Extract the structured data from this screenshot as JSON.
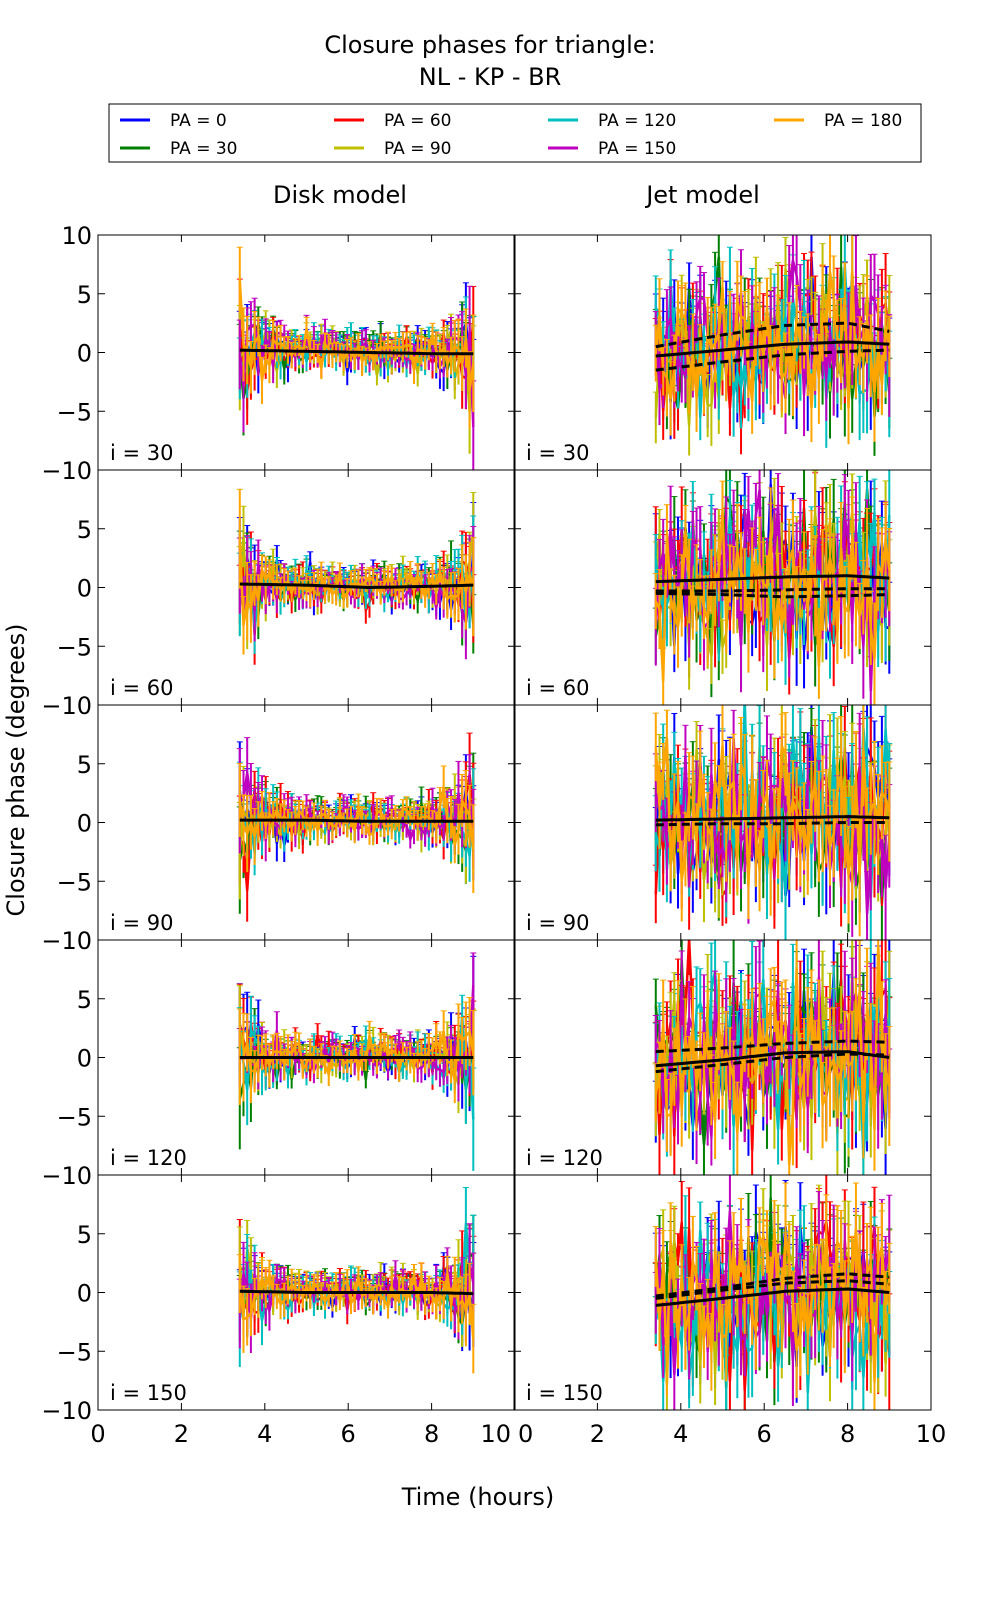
{
  "chart_data": {
    "type": "line",
    "title_line1": "Closure phases for triangle:",
    "title_line2": "NL - KP - BR",
    "xlabel": "Time (hours)",
    "ylabel": "Closure phase (degrees)",
    "xlim": [
      0,
      10
    ],
    "ylim": [
      -10,
      10
    ],
    "xticks": [
      "0",
      "2",
      "4",
      "6",
      "8",
      "10"
    ],
    "yticks": [
      "−10",
      "−5",
      "0",
      "5",
      "10"
    ],
    "grid": false,
    "legend_position": "top",
    "columns": [
      "Disk model",
      "Jet model"
    ],
    "rows": [
      "i = 30",
      "i = 60",
      "i = 90",
      "i = 120",
      "i = 150"
    ],
    "series": [
      {
        "name": "PA = 0",
        "color": "#0000ff"
      },
      {
        "name": "PA = 30",
        "color": "#008000"
      },
      {
        "name": "PA = 60",
        "color": "#ff0000"
      },
      {
        "name": "PA = 90",
        "color": "#bfbf00"
      },
      {
        "name": "PA = 120",
        "color": "#00bfbf"
      },
      {
        "name": "PA = 150",
        "color": "#bf00bf"
      },
      {
        "name": "PA = 180",
        "color": "#ffa500"
      }
    ],
    "time_range": [
      3.4,
      9.0
    ],
    "model_curve_times": [
      3.4,
      5.0,
      6.5,
      8.0,
      9.0
    ],
    "panels": [
      {
        "column": 0,
        "row": 0,
        "scatter_std": 0.8,
        "error": 1.0,
        "models": [
          [
            0.2,
            0.1,
            0.0,
            -0.1,
            -0.1
          ]
        ]
      },
      {
        "column": 1,
        "row": 0,
        "scatter_std": 2.5,
        "error": 2.5,
        "models": [
          [
            -0.3,
            0.2,
            0.7,
            0.9,
            0.7
          ],
          [
            0.5,
            1.5,
            2.3,
            2.5,
            1.8
          ],
          [
            -1.5,
            -0.8,
            -0.2,
            0.1,
            0.2
          ]
        ]
      },
      {
        "column": 0,
        "row": 1,
        "scatter_std": 0.8,
        "error": 1.0,
        "models": [
          [
            0.3,
            0.2,
            0.0,
            0.1,
            0.2
          ]
        ]
      },
      {
        "column": 1,
        "row": 1,
        "scatter_std": 3.0,
        "error": 2.8,
        "models": [
          [
            0.5,
            0.7,
            0.9,
            1.0,
            0.8
          ],
          [
            -0.3,
            -0.3,
            -0.2,
            -0.1,
            -0.1
          ],
          [
            -0.5,
            -0.6,
            -0.8,
            -0.7,
            -0.6
          ]
        ]
      },
      {
        "column": 0,
        "row": 2,
        "scatter_std": 0.8,
        "error": 1.0,
        "models": [
          [
            0.2,
            0.2,
            0.1,
            0.1,
            0.1
          ]
        ]
      },
      {
        "column": 1,
        "row": 2,
        "scatter_std": 3.2,
        "error": 3.0,
        "models": [
          [
            0.2,
            0.3,
            0.4,
            0.5,
            0.4
          ],
          [
            -0.2,
            -0.1,
            -0.1,
            0.0,
            0.0
          ]
        ]
      },
      {
        "column": 0,
        "row": 3,
        "scatter_std": 0.8,
        "error": 1.0,
        "models": [
          [
            0.0,
            0.0,
            0.0,
            0.0,
            0.0
          ]
        ]
      },
      {
        "column": 1,
        "row": 3,
        "scatter_std": 3.2,
        "error": 3.0,
        "models": [
          [
            -0.7,
            -0.2,
            0.4,
            0.5,
            0.0
          ],
          [
            0.5,
            0.8,
            1.2,
            1.4,
            1.3
          ],
          [
            -1.2,
            -0.6,
            0.0,
            0.3,
            0.2
          ]
        ]
      },
      {
        "column": 0,
        "row": 4,
        "scatter_std": 0.8,
        "error": 1.0,
        "models": [
          [
            0.1,
            0.0,
            0.0,
            0.0,
            -0.1
          ]
        ]
      },
      {
        "column": 1,
        "row": 4,
        "scatter_std": 3.0,
        "error": 2.8,
        "models": [
          [
            -1.1,
            -0.5,
            0.1,
            0.3,
            0.0
          ],
          [
            -0.3,
            0.4,
            1.2,
            1.6,
            1.3
          ],
          [
            -0.5,
            0.2,
            0.8,
            1.0,
            0.7
          ]
        ]
      }
    ]
  }
}
